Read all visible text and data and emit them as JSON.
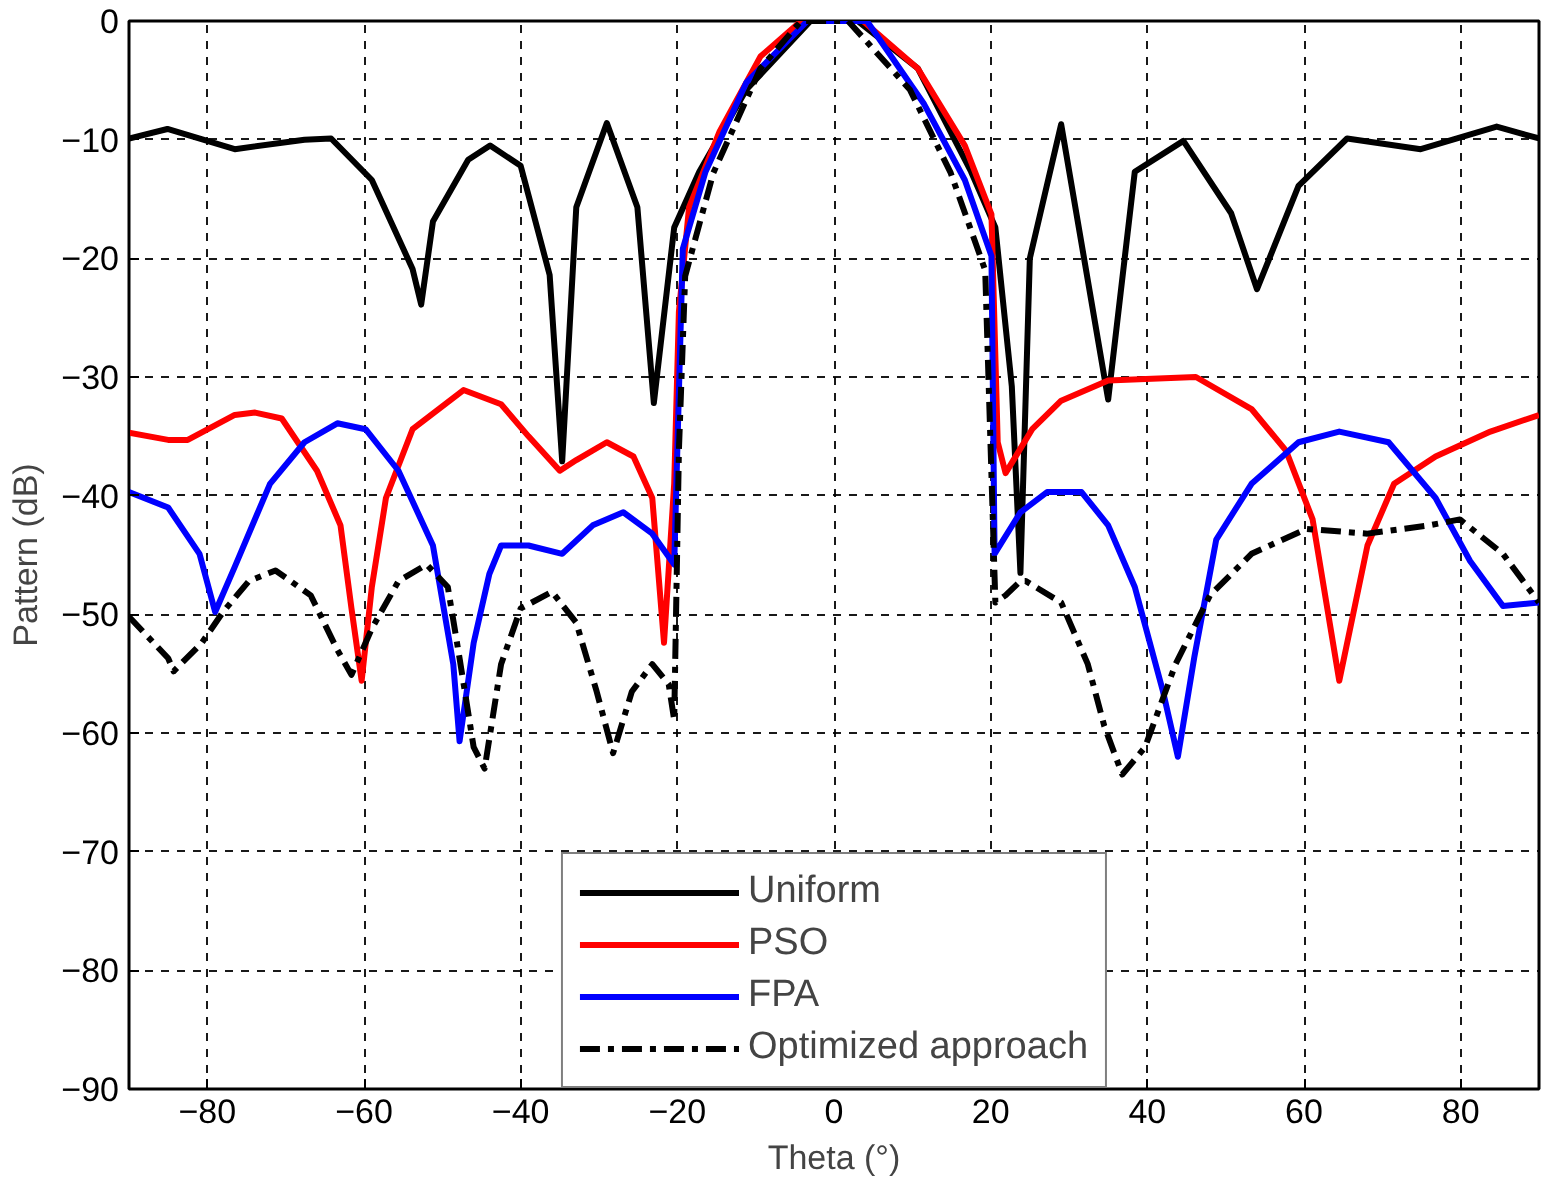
{
  "chart_data": {
    "type": "line",
    "xlabel": "Theta (°)",
    "ylabel": "Pattern (dB)",
    "xlim": [
      -90,
      90
    ],
    "xticks": [
      -80,
      -60,
      -40,
      -20,
      0,
      20,
      40,
      60,
      80
    ],
    "ylim": [
      -90,
      0
    ],
    "yticks": [
      -90,
      -80,
      -70,
      -60,
      -50,
      -40,
      -30,
      -20,
      -10,
      0
    ],
    "grid": true,
    "legend": "bottom",
    "marker": "none",
    "series": [
      {
        "name": "Uniform",
        "color": "#000000",
        "line_style": "solid",
        "x": [
          -90,
          -85.1,
          -76.5,
          -67.6,
          -64.2,
          -59,
          -53.8,
          -52.7,
          -51.2,
          -46.7,
          -43.9,
          -40,
          -36.3,
          -34.7,
          -32.9,
          -29,
          -25.1,
          -23,
          -20.4,
          -17.2,
          -11.2,
          -3,
          0,
          3,
          10.7,
          17.5,
          20.6,
          22.7,
          23.8,
          25,
          29,
          35,
          38.4,
          44.6,
          50.7,
          54,
          59.3,
          65.5,
          74.9,
          84.6,
          90
        ],
        "values": [
          -9.9,
          -9.1,
          -10.8,
          -10,
          -9.9,
          -13.4,
          -20.9,
          -23.9,
          -16.9,
          -11.7,
          -10.5,
          -12.2,
          -21.4,
          -37.1,
          -15.7,
          -8.6,
          -15.7,
          -32.2,
          -17.4,
          -12.7,
          -5.8,
          0,
          0,
          0,
          -4,
          -12.7,
          -17.4,
          -30.8,
          -46.5,
          -20,
          -8.7,
          -31.9,
          -12.7,
          -10.1,
          -16.2,
          -22.6,
          -13.9,
          -9.9,
          -10.8,
          -8.9,
          -9.9
        ]
      },
      {
        "name": "PSO",
        "color": "#ff0000",
        "line_style": "solid",
        "x": [
          -90,
          -85,
          -82.5,
          -76.5,
          -73.9,
          -70.5,
          -66,
          -63,
          -61.6,
          -60.3,
          -59,
          -57.2,
          -53.8,
          -47.3,
          -42.5,
          -39,
          -35,
          -32.9,
          -29,
          -25.6,
          -23.2,
          -21.7,
          -20.4,
          -19.8,
          -18.5,
          -14.6,
          -9.4,
          -4.2,
          0,
          3.7,
          10.7,
          16.7,
          20.1,
          20.9,
          21.9,
          25.3,
          29,
          35,
          46.2,
          53.3,
          57.7,
          61.1,
          64.5,
          68.1,
          71.5,
          76.8,
          83.8,
          90
        ],
        "values": [
          -34.7,
          -35.3,
          -35.3,
          -33.2,
          -33,
          -33.5,
          -37.9,
          -42.5,
          -49.5,
          -55.6,
          -47.7,
          -40.2,
          -34.4,
          -31.1,
          -32.3,
          -35,
          -37.9,
          -37,
          -35.5,
          -36.7,
          -40.2,
          -52.4,
          -39,
          -24.5,
          -15.7,
          -9.3,
          -3,
          0,
          0,
          0,
          -4,
          -10.5,
          -16.3,
          -35.5,
          -38.1,
          -34.4,
          -32,
          -30.3,
          -30,
          -32.7,
          -36.2,
          -42,
          -55.6,
          -44.2,
          -39,
          -36.7,
          -34.6,
          -33.2
        ]
      },
      {
        "name": "FPA",
        "color": "#0000ff",
        "line_style": "solid",
        "x": [
          -90,
          -85,
          -81,
          -79,
          -76.5,
          -72,
          -67.6,
          -63.4,
          -59.8,
          -55.6,
          -51.2,
          -48.6,
          -47.8,
          -46,
          -44,
          -42.5,
          -39,
          -34.7,
          -30.8,
          -26.9,
          -23.2,
          -20.4,
          -19.3,
          -16.4,
          -11.2,
          -3.4,
          0,
          4.2,
          11.5,
          16.7,
          20.1,
          20.5,
          23.8,
          27.2,
          31.6,
          35,
          38.4,
          42,
          43.9,
          46,
          48.8,
          53.3,
          59.3,
          64.5,
          70.8,
          76.8,
          81.2,
          85.4,
          90
        ],
        "values": [
          -39.7,
          -41,
          -44.9,
          -49.8,
          -46,
          -39,
          -35.5,
          -33.9,
          -34.4,
          -37.9,
          -44.2,
          -54.2,
          -60.7,
          -52.4,
          -46.6,
          -44.2,
          -44.2,
          -44.9,
          -42.5,
          -41.4,
          -43.2,
          -45.8,
          -19.2,
          -12.7,
          -5.2,
          0,
          0,
          0,
          -7,
          -13.4,
          -19.8,
          -44.9,
          -41.4,
          -39.7,
          -39.7,
          -42.5,
          -47.7,
          -56.5,
          -62,
          -53.6,
          -43.7,
          -39,
          -35.5,
          -34.6,
          -35.5,
          -40.2,
          -45.5,
          -49.3,
          -49
        ]
      },
      {
        "name": "Optimized approach",
        "color": "#000000",
        "line_style": "dashdot",
        "x": [
          -90,
          -85,
          -84.3,
          -80.7,
          -78,
          -74.7,
          -71.3,
          -66.8,
          -63.4,
          -61.6,
          -59,
          -55.6,
          -52,
          -49.3,
          -47.8,
          -46,
          -44.6,
          -42.5,
          -40,
          -36,
          -32.9,
          -30.3,
          -28.2,
          -25.8,
          -23.2,
          -21.1,
          -20.4,
          -19.8,
          -19,
          -15.4,
          -9.4,
          -4.2,
          0,
          1.8,
          9.7,
          14.9,
          19.3,
          20.6,
          21.9,
          23.8,
          24.5,
          29,
          32.4,
          34.5,
          36.8,
          39.7,
          43.6,
          48,
          53.3,
          60.3,
          68.1,
          76,
          79.9,
          85.4,
          90
        ],
        "values": [
          -50.2,
          -53.7,
          -54.8,
          -52.4,
          -49.8,
          -47.2,
          -46.3,
          -48.4,
          -53,
          -55.1,
          -51.2,
          -47.2,
          -45.8,
          -47.7,
          -53.7,
          -61.2,
          -63,
          -54.2,
          -49.5,
          -48.1,
          -50.7,
          -56.5,
          -61.7,
          -56.5,
          -54.2,
          -55.9,
          -58.9,
          -36.2,
          -21.5,
          -12.8,
          -4,
          0,
          0,
          0,
          -5.8,
          -12.8,
          -21,
          -49,
          -48.4,
          -47.2,
          -47.2,
          -49,
          -54.2,
          -59.4,
          -63.5,
          -61.2,
          -54.2,
          -48.4,
          -44.9,
          -42.8,
          -43.2,
          -42.5,
          -42,
          -44.9,
          -49
        ]
      }
    ]
  }
}
